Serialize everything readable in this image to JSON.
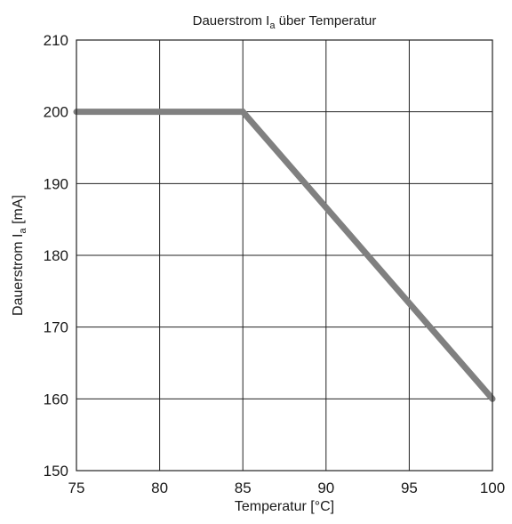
{
  "chart_data": {
    "type": "line",
    "title": {
      "main": "Dauerstrom I",
      "sub": "a",
      "rest": " über Temperatur"
    },
    "xlabel": "Temperatur [°C]",
    "ylabel": {
      "main": "Dauerstrom I",
      "sub": "a",
      "rest": " [mA]"
    },
    "xlim": [
      75,
      100
    ],
    "ylim": [
      150,
      210
    ],
    "xticks": [
      75,
      80,
      85,
      90,
      95,
      100
    ],
    "yticks": [
      150,
      160,
      170,
      180,
      190,
      200,
      210
    ],
    "grid": true,
    "series": [
      {
        "x": [
          75,
          85,
          100
        ],
        "y": [
          200,
          200,
          160
        ],
        "color": "#808080"
      }
    ]
  }
}
